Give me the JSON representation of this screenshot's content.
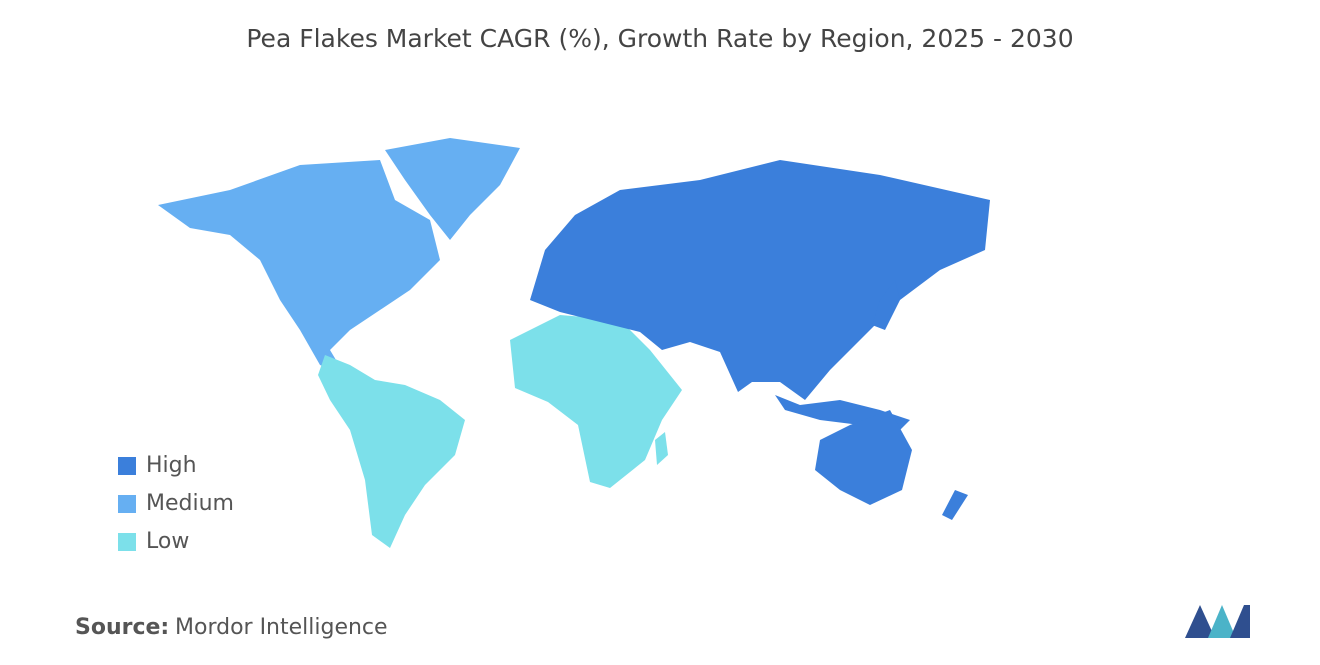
{
  "title": "Pea Flakes Market CAGR (%), Growth Rate by Region, 2025 - 2030",
  "legend": [
    {
      "label": "High",
      "color": "#3b7fdb"
    },
    {
      "label": "Medium",
      "color": "#66aff2"
    },
    {
      "label": "Low",
      "color": "#7ce0ea"
    }
  ],
  "source": {
    "label": "Source:",
    "text": "Mordor Intelligence"
  }
}
